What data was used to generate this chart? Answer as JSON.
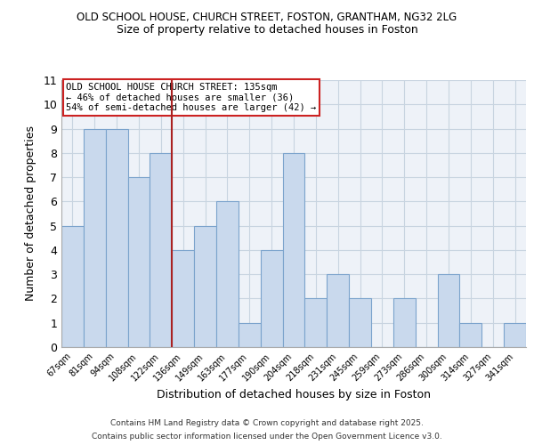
{
  "title1": "OLD SCHOOL HOUSE, CHURCH STREET, FOSTON, GRANTHAM, NG32 2LG",
  "title2": "Size of property relative to detached houses in Foston",
  "xlabel": "Distribution of detached houses by size in Foston",
  "ylabel": "Number of detached properties",
  "categories": [
    "67sqm",
    "81sqm",
    "94sqm",
    "108sqm",
    "122sqm",
    "136sqm",
    "149sqm",
    "163sqm",
    "177sqm",
    "190sqm",
    "204sqm",
    "218sqm",
    "231sqm",
    "245sqm",
    "259sqm",
    "273sqm",
    "286sqm",
    "300sqm",
    "314sqm",
    "327sqm",
    "341sqm"
  ],
  "values": [
    5,
    9,
    9,
    7,
    8,
    4,
    5,
    6,
    1,
    4,
    8,
    2,
    3,
    2,
    0,
    2,
    0,
    3,
    1,
    0,
    1
  ],
  "bar_color": "#c9d9ed",
  "bar_edge_color": "#7ba3cc",
  "grid_color": "#c8d4e0",
  "background_color": "#eef2f8",
  "vline_color": "#aa2222",
  "vline_x_index": 4.5,
  "ylim": [
    0,
    11
  ],
  "yticks": [
    0,
    1,
    2,
    3,
    4,
    5,
    6,
    7,
    8,
    9,
    10,
    11
  ],
  "annotation_text": "OLD SCHOOL HOUSE CHURCH STREET: 135sqm\n← 46% of detached houses are smaller (36)\n54% of semi-detached houses are larger (42) →",
  "annotation_box_color": "#ffffff",
  "annotation_box_edge": "#cc2222",
  "footer1": "Contains HM Land Registry data © Crown copyright and database right 2025.",
  "footer2": "Contains public sector information licensed under the Open Government Licence v3.0."
}
